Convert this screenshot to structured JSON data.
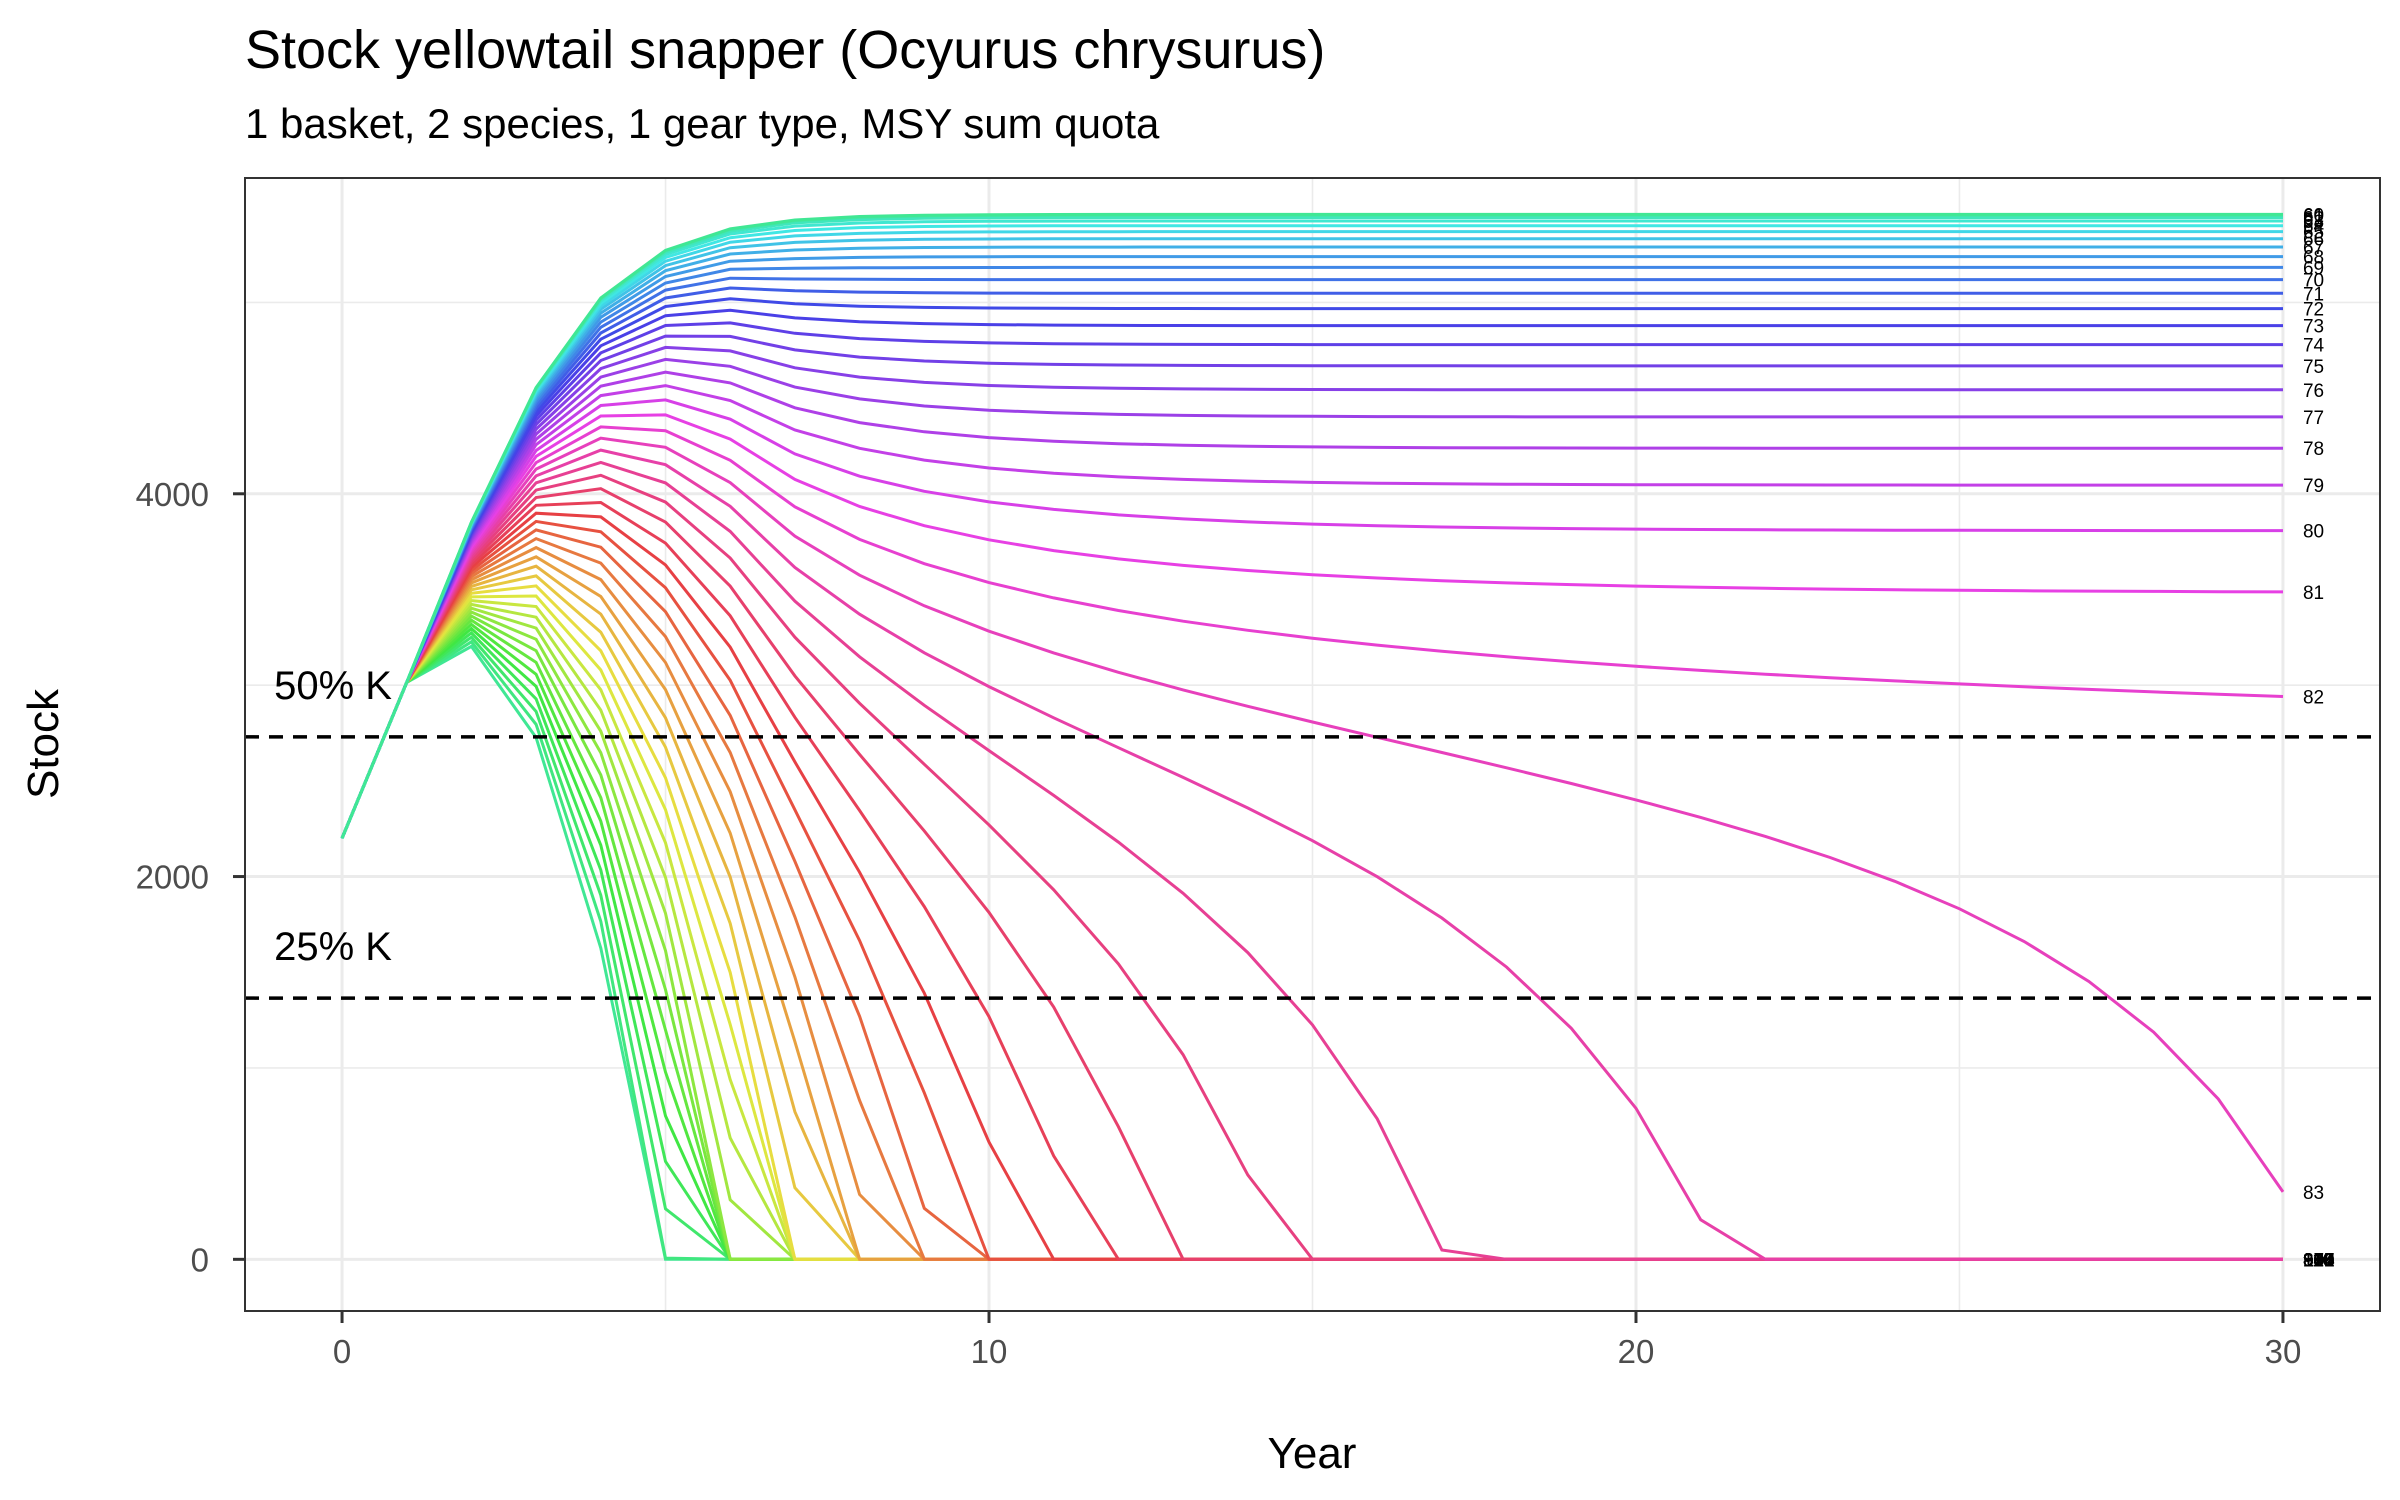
{
  "chart_data": {
    "type": "line",
    "title": "Stock yellowtail snapper (Ocyurus chrysurus)",
    "subtitle": "1 basket, 2 species, 1 gear type, MSY sum quota",
    "xlabel": "Year",
    "ylabel": "Stock",
    "xlim": [
      -1.5,
      31.5
    ],
    "ylim": [
      -270,
      5650
    ],
    "x_ticks": [
      0,
      10,
      20,
      30
    ],
    "y_ticks": [
      0,
      2000,
      4000
    ],
    "grid": true,
    "legend": "none",
    "reference_lines": [
      {
        "label": "50% K",
        "y": 2730,
        "style": "dashed"
      },
      {
        "label": "25% K",
        "y": 1365,
        "style": "dashed"
      }
    ],
    "series_summary": {
      "count": 51,
      "label_start": 60,
      "label_end": 110,
      "x": [
        0,
        30
      ],
      "initial_stock": 2200
    },
    "series_labels": [
      "60",
      "61",
      "62",
      "63",
      "64",
      "65",
      "66",
      "67",
      "68",
      "69",
      "70",
      "71",
      "72",
      "73",
      "74",
      "75",
      "76",
      "77",
      "78",
      "79",
      "80",
      "81",
      "82",
      "83",
      "84",
      "85",
      "86",
      "87",
      "88",
      "89",
      "90",
      "91",
      "92",
      "93",
      "94",
      "95",
      "96",
      "97",
      "98",
      "99",
      "100",
      "101",
      "102",
      "103",
      "104",
      "105",
      "106",
      "107",
      "108",
      "109",
      "110"
    ]
  }
}
